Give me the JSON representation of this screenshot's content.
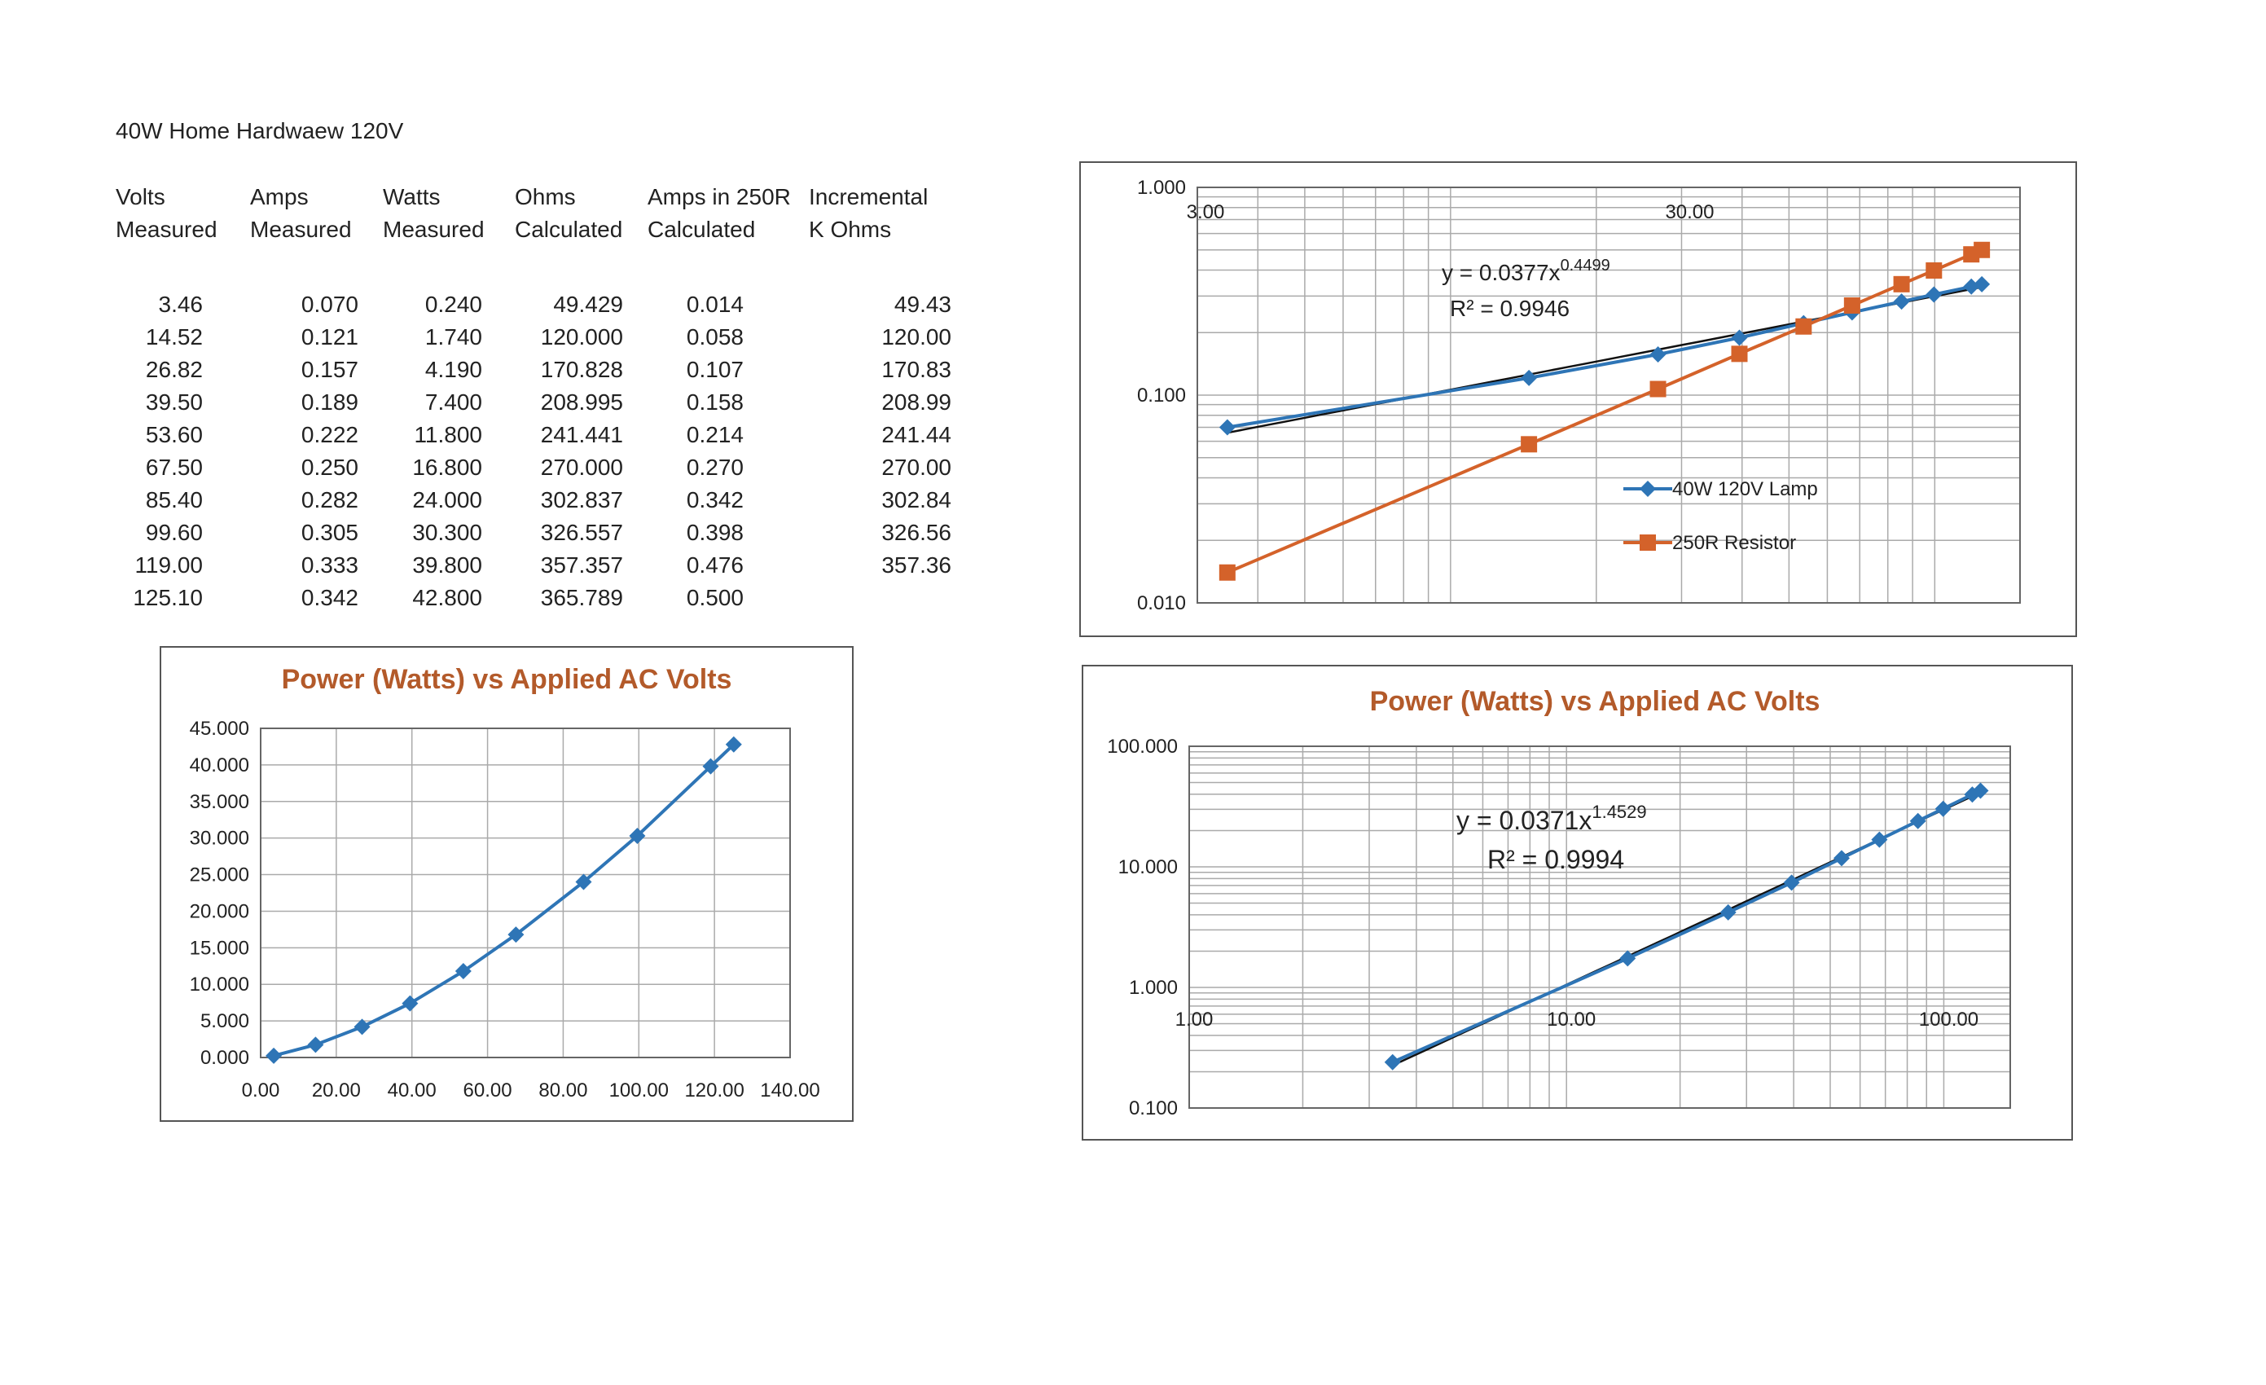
{
  "page": {
    "title": "40W Home Hardwaew 120V"
  },
  "table": {
    "headers": [
      [
        "Volts",
        "Measured"
      ],
      [
        "Amps",
        "Measured"
      ],
      [
        "Watts",
        "Measured"
      ],
      [
        "Ohms",
        "Calculated"
      ],
      [
        "Amps in 250R",
        "Calculated"
      ],
      [
        "Incremental",
        "K Ohms"
      ]
    ],
    "rows": [
      [
        "3.46",
        "0.070",
        "0.240",
        "49.429",
        "0.014",
        "49.43"
      ],
      [
        "14.52",
        "0.121",
        "1.740",
        "120.000",
        "0.058",
        "120.00"
      ],
      [
        "26.82",
        "0.157",
        "4.190",
        "170.828",
        "0.107",
        "170.83"
      ],
      [
        "39.50",
        "0.189",
        "7.400",
        "208.995",
        "0.158",
        "208.99"
      ],
      [
        "53.60",
        "0.222",
        "11.800",
        "241.441",
        "0.214",
        "241.44"
      ],
      [
        "67.50",
        "0.250",
        "16.800",
        "270.000",
        "0.270",
        "270.00"
      ],
      [
        "85.40",
        "0.282",
        "24.000",
        "302.837",
        "0.342",
        "302.84"
      ],
      [
        "99.60",
        "0.305",
        "30.300",
        "326.557",
        "0.398",
        "326.56"
      ],
      [
        "119.00",
        "0.333",
        "39.800",
        "357.357",
        "0.476",
        "357.36"
      ],
      [
        "125.10",
        "0.342",
        "42.800",
        "365.789",
        "0.500",
        ""
      ]
    ]
  },
  "chart_data": [
    {
      "id": "linear-power",
      "type": "line",
      "title": "Power (Watts) vs Applied AC Volts",
      "xlabel": "",
      "ylabel": "",
      "xlim": [
        0,
        140
      ],
      "ylim": [
        0,
        45
      ],
      "x_ticks": [
        "0.00",
        "20.00",
        "40.00",
        "60.00",
        "80.00",
        "100.00",
        "120.00",
        "140.00"
      ],
      "y_ticks": [
        "0.000",
        "5.000",
        "10.000",
        "15.000",
        "20.000",
        "25.000",
        "30.000",
        "35.000",
        "40.000",
        "45.000"
      ],
      "grid": true,
      "series": [
        {
          "x": [
            3.46,
            14.52,
            26.82,
            39.5,
            53.6,
            67.5,
            85.4,
            99.6,
            119.0,
            125.1
          ],
          "y": [
            0.24,
            1.74,
            4.19,
            7.4,
            11.8,
            16.8,
            24.0,
            30.3,
            39.8,
            42.8
          ],
          "color": "#2e75b6"
        }
      ]
    },
    {
      "id": "log-current",
      "type": "scatter",
      "title": "",
      "xlabel": "",
      "ylabel": "",
      "x_scale": "log",
      "y_scale": "log",
      "xlim": [
        3,
        150
      ],
      "ylim": [
        0.01,
        1
      ],
      "x_ticks": [
        "3.00",
        "30.00"
      ],
      "y_ticks": [
        "0.010",
        "0.100",
        "1.000"
      ],
      "grid": true,
      "legend": "right",
      "annotation": [
        "y = 0.0377x",
        "0.4499",
        "R² = 0.9946"
      ],
      "series": [
        {
          "name": "40W 120V Lamp",
          "color": "#2e75b6",
          "marker": "diamond",
          "x": [
            3.46,
            14.52,
            26.82,
            39.5,
            53.6,
            67.5,
            85.4,
            99.6,
            119.0,
            125.1
          ],
          "y": [
            0.07,
            0.121,
            0.157,
            0.189,
            0.222,
            0.25,
            0.282,
            0.305,
            0.333,
            0.342
          ]
        },
        {
          "name": "250R Resistor",
          "color": "#d4622a",
          "marker": "square",
          "x": [
            3.46,
            14.52,
            26.82,
            39.5,
            53.6,
            67.5,
            85.4,
            99.6,
            119.0,
            125.1
          ],
          "y": [
            0.014,
            0.058,
            0.107,
            0.158,
            0.214,
            0.27,
            0.342,
            0.398,
            0.476,
            0.5
          ]
        }
      ],
      "trendline": {
        "a": 0.0377,
        "b": 0.4499,
        "xrange": [
          3.46,
          125.1
        ],
        "color": "#111111"
      }
    },
    {
      "id": "log-power",
      "type": "scatter",
      "title": "Power (Watts) vs Applied AC Volts",
      "xlabel": "",
      "ylabel": "",
      "x_scale": "log",
      "y_scale": "log",
      "xlim": [
        1,
        150
      ],
      "ylim": [
        0.1,
        100
      ],
      "x_ticks": [
        "1.00",
        "10.00",
        "100.00"
      ],
      "y_ticks": [
        "0.100",
        "1.000",
        "10.000",
        "100.000"
      ],
      "grid": true,
      "annotation": [
        "y = 0.0371x",
        "1.4529",
        "R² = 0.9994"
      ],
      "series": [
        {
          "color": "#2e75b6",
          "marker": "diamond",
          "x": [
            3.46,
            14.52,
            26.82,
            39.5,
            53.6,
            67.5,
            85.4,
            99.6,
            119.0,
            125.1
          ],
          "y": [
            0.24,
            1.74,
            4.19,
            7.4,
            11.8,
            16.8,
            24.0,
            30.3,
            39.8,
            42.8
          ]
        }
      ],
      "trendline": {
        "a": 0.0371,
        "b": 1.4529,
        "xrange": [
          3.46,
          125.1
        ],
        "color": "#111111"
      }
    }
  ]
}
